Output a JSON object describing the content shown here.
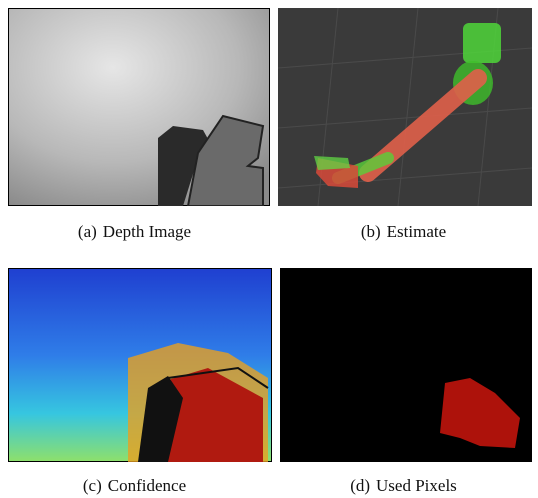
{
  "subfigures": [
    {
      "label": "(a)",
      "caption": "Depth Image"
    },
    {
      "label": "(b)",
      "caption": "Estimate"
    },
    {
      "label": "(c)",
      "caption": "Confidence"
    },
    {
      "label": "(d)",
      "caption": "Used Pixels"
    }
  ]
}
